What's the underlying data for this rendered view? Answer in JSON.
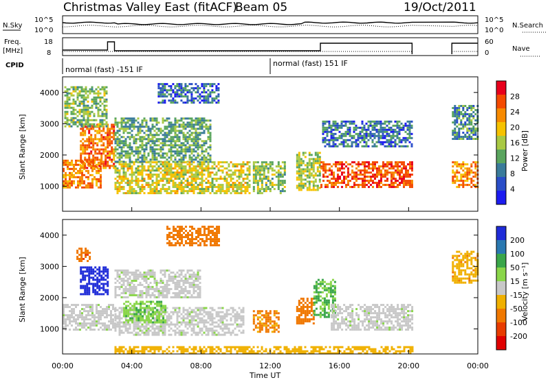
{
  "header": {
    "title": "Christmas Valley East (fitACF)",
    "beam": "Beam 05",
    "date": "19/Oct/2011"
  },
  "strip_labels": {
    "nsky": "N.Sky",
    "nsearch": "N.Search",
    "freq": "Freq.",
    "freq_unit": "[MHz]",
    "nave": "Nave",
    "cpid": "CPID"
  },
  "cpid_modes": [
    {
      "label": "normal (fast) -151 IF",
      "start_hour": 0,
      "end_hour": 12
    },
    {
      "label": "normal (fast) 151 IF",
      "start_hour": 12,
      "end_hour": 24
    }
  ],
  "axes": {
    "xlabel": "Time UT",
    "x_ticks": [
      "00:00",
      "04:00",
      "08:00",
      "12:00",
      "16:00",
      "20:00",
      "00:00"
    ],
    "ylabel": "Slant Range [km]",
    "y_ticks": [
      "1000",
      "2000",
      "3000",
      "4000"
    ],
    "nsky_ticks": [
      "10^5",
      "10^0"
    ],
    "nsearch_ticks": [
      "10^5",
      "10^0"
    ],
    "freq_ticks": [
      "18",
      "8"
    ],
    "nave_ticks": [
      "60",
      "0"
    ]
  },
  "power_colorbar": {
    "label": "Power [dB]",
    "ticks": [
      "28",
      "24",
      "20",
      "16",
      "12",
      "8",
      "4"
    ],
    "colors": [
      "#e8001c",
      "#f44a00",
      "#f78a00",
      "#f6c200",
      "#a9c944",
      "#5aa55e",
      "#3a7b9a",
      "#2a4ec8",
      "#1c1cf0"
    ]
  },
  "velocity_colorbar": {
    "label": "Velocity [m s⁻¹]",
    "ticks": [
      "200",
      "100",
      "50",
      "15",
      "-15",
      "-50",
      "-100",
      "-200"
    ],
    "colors": [
      "#1f2cd8",
      "#2a78b0",
      "#3aa64a",
      "#8ad64a",
      "#c8c8c8",
      "#f0b000",
      "#f07800",
      "#e83c00",
      "#e00000"
    ]
  },
  "chart_data": [
    {
      "type": "heatmap",
      "name": "power",
      "x_range_hours": [
        0,
        24
      ],
      "ylim": [
        200,
        4500
      ],
      "regions": [
        {
          "t0": 0.0,
          "t1": 2.2,
          "r0": 950,
          "r1": 1850,
          "level": 22
        },
        {
          "t0": 1.0,
          "t1": 3.0,
          "r0": 1600,
          "r1": 3000,
          "level": 24
        },
        {
          "t0": 0.1,
          "t1": 2.5,
          "r0": 2900,
          "r1": 4200,
          "level": 12
        },
        {
          "t0": 3.0,
          "t1": 10.8,
          "r0": 800,
          "r1": 1800,
          "level": 16
        },
        {
          "t0": 3.0,
          "t1": 8.5,
          "r0": 1800,
          "r1": 3200,
          "level": 10
        },
        {
          "t0": 5.5,
          "t1": 9.0,
          "r0": 3700,
          "r1": 4300,
          "level": 6
        },
        {
          "t0": 11.0,
          "t1": 12.8,
          "r0": 800,
          "r1": 1800,
          "level": 12
        },
        {
          "t0": 13.5,
          "t1": 14.9,
          "r0": 900,
          "r1": 2100,
          "level": 14
        },
        {
          "t0": 14.9,
          "t1": 20.2,
          "r0": 950,
          "r1": 1800,
          "level": 26
        },
        {
          "t0": 15.0,
          "t1": 20.2,
          "r0": 2300,
          "r1": 3100,
          "level": 6
        },
        {
          "t0": 22.5,
          "t1": 24.0,
          "r0": 950,
          "r1": 1800,
          "level": 22
        },
        {
          "t0": 22.5,
          "t1": 24.0,
          "r0": 2500,
          "r1": 3600,
          "level": 8
        }
      ]
    },
    {
      "type": "heatmap",
      "name": "velocity",
      "x_range_hours": [
        0,
        24
      ],
      "ylim": [
        200,
        4500
      ],
      "regions": [
        {
          "t0": 0.0,
          "t1": 3.0,
          "r0": 950,
          "r1": 1800,
          "level": 0
        },
        {
          "t0": 1.0,
          "t1": 2.6,
          "r0": 2100,
          "r1": 3000,
          "level": 200
        },
        {
          "t0": 0.8,
          "t1": 1.6,
          "r0": 3200,
          "r1": 3600,
          "level": -100
        },
        {
          "t0": 3.0,
          "t1": 10.5,
          "r0": 800,
          "r1": 1700,
          "level": 0
        },
        {
          "t0": 3.5,
          "t1": 6.0,
          "r0": 1200,
          "r1": 1900,
          "level": 30
        },
        {
          "t0": 3.0,
          "t1": 8.0,
          "r0": 2000,
          "r1": 2900,
          "level": 0
        },
        {
          "t0": 6.0,
          "t1": 9.0,
          "r0": 3700,
          "r1": 4300,
          "level": -80
        },
        {
          "t0": 11.0,
          "t1": 12.5,
          "r0": 900,
          "r1": 1600,
          "level": -60
        },
        {
          "t0": 13.5,
          "t1": 14.5,
          "r0": 1200,
          "r1": 2000,
          "level": -70
        },
        {
          "t0": 14.5,
          "t1": 15.8,
          "r0": 1400,
          "r1": 2600,
          "level": 40
        },
        {
          "t0": 15.5,
          "t1": 20.2,
          "r0": 950,
          "r1": 1800,
          "level": 0
        },
        {
          "t0": 22.5,
          "t1": 24.0,
          "r0": 2500,
          "r1": 3500,
          "level": -40
        },
        {
          "t0": 3.0,
          "t1": 20.2,
          "r0": 250,
          "r1": 450,
          "level": -30
        }
      ]
    }
  ]
}
